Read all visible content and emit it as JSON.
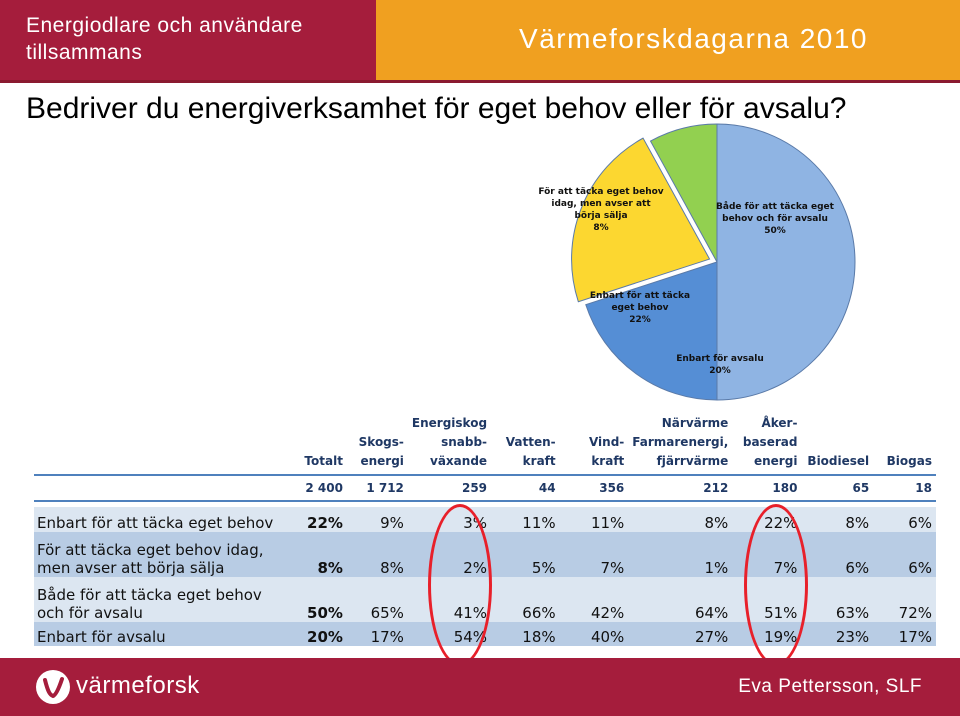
{
  "header": {
    "left_title": "Energiodlare och användare tillsammans",
    "right_title": "Värmeforskdagarna 2010"
  },
  "question": "Bedriver du energiverksamhet för eget behov eller för avsalu?",
  "chart_data": [
    {
      "type": "pie",
      "title": "",
      "slices": [
        {
          "label": [
            "Både för att täcka eget",
            "behov och för avsalu",
            "50%"
          ],
          "value": 50,
          "color": "#8fb4e3"
        },
        {
          "label": [
            "Enbart för avsalu",
            "20%"
          ],
          "value": 20,
          "color": "#558ed5"
        },
        {
          "label": [
            "Enbart för att täcka",
            "eget behov",
            "22%"
          ],
          "value": 22,
          "color": "#fcd730"
        },
        {
          "label": [
            "För att täcka eget behov",
            "idag, men avser att",
            "börja sälja",
            "8%"
          ],
          "value": 8,
          "color": "#92d050"
        }
      ],
      "legend": "none"
    },
    {
      "type": "table",
      "columns": [
        "",
        [
          "Totalt"
        ],
        [
          "Skogs-",
          "energi"
        ],
        [
          "Energiskog",
          "snabb-",
          "växande"
        ],
        [
          "Vatten-",
          "kraft"
        ],
        [
          "Vind-",
          "kraft"
        ],
        [
          "Närvärme",
          "Farmarenergi,",
          "fjärrvärme"
        ],
        [
          "Åker-",
          "baserad",
          "energi"
        ],
        [
          "Biodiesel"
        ],
        [
          "Biogas"
        ]
      ],
      "totals": [
        "",
        "2 400",
        "1 712",
        "259",
        "44",
        "356",
        "212",
        "180",
        "65",
        "18"
      ],
      "rows": [
        {
          "label": [
            "Enbart för att täcka eget behov"
          ],
          "values": [
            "22%",
            "9%",
            "3%",
            "11%",
            "11%",
            "8%",
            "22%",
            "8%",
            "6%"
          ]
        },
        {
          "label": [
            "För att täcka eget behov idag,",
            "men avser att börja sälja"
          ],
          "values": [
            "8%",
            "8%",
            "2%",
            "5%",
            "7%",
            "1%",
            "7%",
            "6%",
            "6%"
          ]
        },
        {
          "label": [
            "Både för att täcka eget behov",
            "och för avsalu"
          ],
          "values": [
            "50%",
            "65%",
            "41%",
            "66%",
            "42%",
            "64%",
            "51%",
            "63%",
            "72%"
          ]
        },
        {
          "label": [
            "Enbart för avsalu"
          ],
          "values": [
            "20%",
            "17%",
            "54%",
            "18%",
            "40%",
            "27%",
            "19%",
            "23%",
            "17%"
          ]
        }
      ],
      "highlighted_columns": [
        "Energiskog snabb-växande",
        "Åker-baserad energi"
      ],
      "highlight_color": "#e8202a"
    }
  ],
  "footer": {
    "logo_text": "värmeforsk",
    "author": "Eva Pettersson, SLF"
  },
  "colors": {
    "brand_red": "#a51d3c",
    "brand_orange": "#f0a020"
  }
}
